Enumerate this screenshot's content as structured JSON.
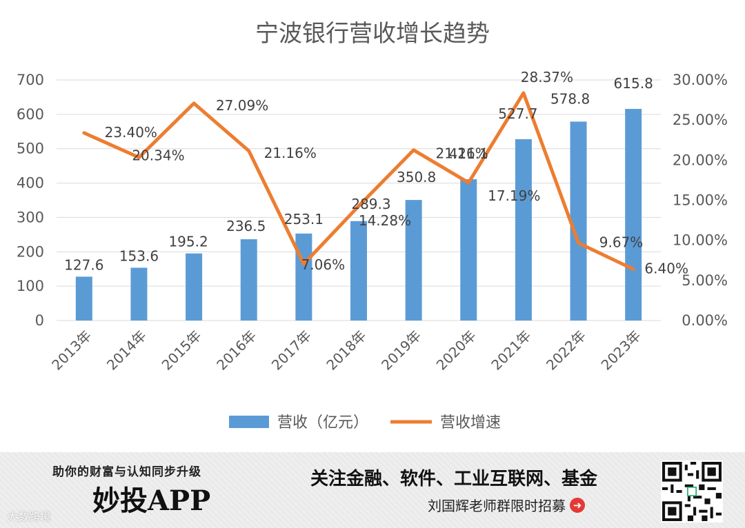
{
  "chart_data": {
    "type": "bar",
    "title": "宁波银行营收增长趋势",
    "categories": [
      "2013年",
      "2014年",
      "2015年",
      "2016年",
      "2017年",
      "2018年",
      "2019年",
      "2020年",
      "2021年",
      "2022年",
      "2023年"
    ],
    "series": [
      {
        "name": "营收（亿元）",
        "type": "bar",
        "axis": "left",
        "color": "#5b9bd5",
        "values": [
          127.6,
          153.6,
          195.2,
          236.5,
          253.1,
          289.3,
          350.8,
          411.1,
          527.7,
          578.8,
          615.8
        ],
        "labels": [
          "127.6",
          "153.6",
          "195.2",
          "236.5",
          "253.1",
          "289.3",
          "350.8",
          "411.1",
          "527.7",
          "578.8",
          "615.8"
        ]
      },
      {
        "name": "营收增速",
        "type": "line",
        "axis": "right",
        "color": "#ed7d31",
        "values": [
          23.4,
          20.34,
          27.09,
          21.16,
          7.06,
          14.28,
          21.26,
          17.19,
          28.37,
          9.67,
          6.4
        ],
        "labels": [
          "23.40%",
          "20.34%",
          "27.09%",
          "21.16%",
          "7.06%",
          "14.28%",
          "21.26%",
          "17.19%",
          "28.37%",
          "9.67%",
          "6.40%"
        ]
      }
    ],
    "left_axis": {
      "min": 0,
      "max": 700,
      "ticks": [
        "0",
        "100",
        "200",
        "300",
        "400",
        "500",
        "600",
        "700"
      ]
    },
    "right_axis": {
      "min": 0,
      "max": 30,
      "ticks": [
        "0.00%",
        "5.00%",
        "10.00%",
        "15.00%",
        "20.00%",
        "25.00%",
        "30.00%"
      ]
    },
    "grid": true,
    "legend": "bottom"
  },
  "banner": {
    "slogan": "助你的财富与认知同步升级",
    "brand": "妙投APP",
    "watermark": "大数跨境",
    "headline": "关注金融、软件、工业互联网、基金",
    "sub": "刘国辉老师群限时招募",
    "arrow": "➜"
  }
}
